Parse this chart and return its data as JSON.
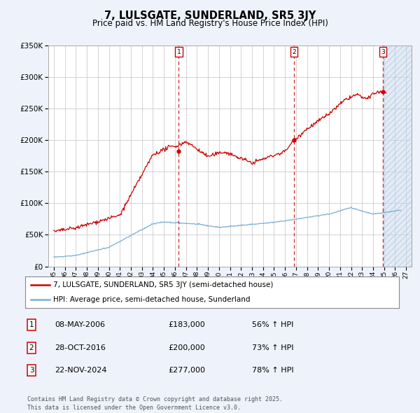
{
  "title_line1": "7, LULSGATE, SUNDERLAND, SR5 3JY",
  "title_line2": "Price paid vs. HM Land Registry's House Price Index (HPI)",
  "background_color": "#eef2fb",
  "plot_bg_color": "#ffffff",
  "red_line_color": "#cc0000",
  "blue_line_color": "#7aadd4",
  "grid_color": "#cccccc",
  "hatch_color": "#c8d8ee",
  "purchases": [
    {
      "date_num": 2006.35,
      "price": 183000,
      "label": "1"
    },
    {
      "date_num": 2016.82,
      "price": 200000,
      "label": "2"
    },
    {
      "date_num": 2024.9,
      "price": 277000,
      "label": "3"
    }
  ],
  "table_rows": [
    {
      "num": "1",
      "date": "08-MAY-2006",
      "price": "£183,000",
      "change": "56% ↑ HPI"
    },
    {
      "num": "2",
      "date": "28-OCT-2016",
      "price": "£200,000",
      "change": "73% ↑ HPI"
    },
    {
      "num": "3",
      "date": "22-NOV-2024",
      "price": "£277,000",
      "change": "78% ↑ HPI"
    }
  ],
  "legend_entries": [
    "7, LULSGATE, SUNDERLAND, SR5 3JY (semi-detached house)",
    "HPI: Average price, semi-detached house, Sunderland"
  ],
  "footer": "Contains HM Land Registry data © Crown copyright and database right 2025.\nThis data is licensed under the Open Government Licence v3.0.",
  "xmin": 1994.5,
  "xmax": 2027.5,
  "ymin": 0,
  "ymax": 350000,
  "hatch_start": 2024.9
}
